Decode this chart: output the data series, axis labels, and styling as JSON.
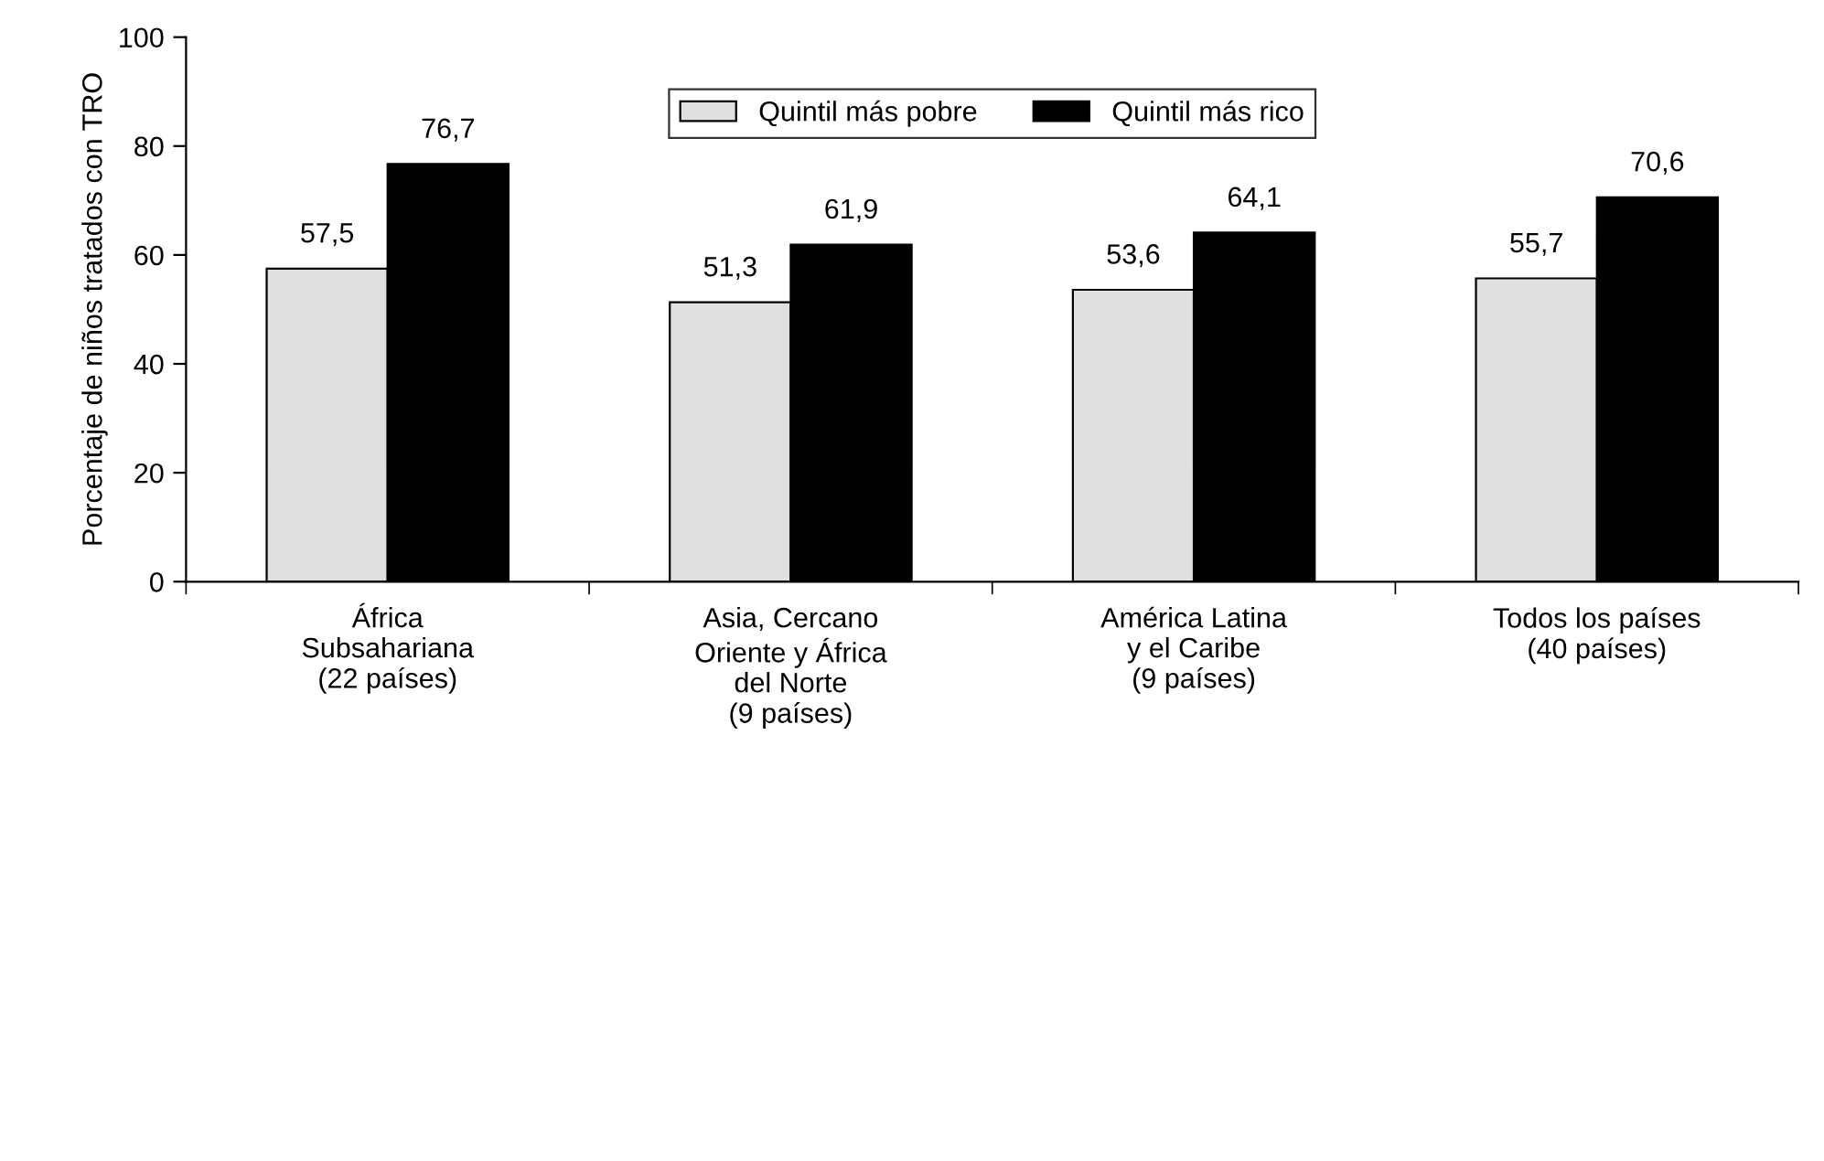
{
  "chart_data": {
    "type": "bar",
    "ylabel": "Porcentaje de niños tratados con TRO",
    "categories": [
      "África\nSubsahariana\n(22 países)",
      "Asia, Cercano\nOriente y África\ndel Norte\n(9 países)",
      "América Latina\ny el Caribe\n(9 países)",
      "Todos los países\n(40 países)"
    ],
    "series": [
      {
        "name": "Quintil más pobre",
        "color": "#e0e0e0",
        "values": [
          57.5,
          51.3,
          53.6,
          55.7
        ],
        "value_labels": [
          "57,5",
          "51,3",
          "53,6",
          "55,7"
        ]
      },
      {
        "name": "Quintil más rico",
        "color": "#000000",
        "values": [
          76.7,
          61.9,
          64.1,
          70.6
        ],
        "value_labels": [
          "76,7",
          "61,9",
          "64,1",
          "70,6"
        ]
      }
    ],
    "ylim": [
      0,
      100
    ],
    "yticks": [
      0,
      20,
      40,
      60,
      80,
      100
    ],
    "grid": false,
    "legend": "top"
  }
}
